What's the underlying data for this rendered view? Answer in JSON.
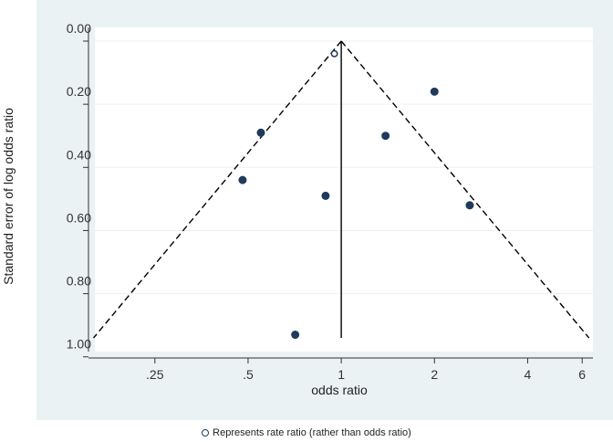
{
  "chart_data": {
    "type": "scatter",
    "title": "",
    "xlabel": "odds ratio",
    "ylabel": "Standard error of log odds ratio",
    "x_scale": "log",
    "y_reversed": true,
    "xlim": [
      0.16,
      6.5
    ],
    "ylim": [
      0,
      1.05
    ],
    "x_ticks": [
      {
        "value": 0.25,
        "label": ".25"
      },
      {
        "value": 0.5,
        "label": ".5"
      },
      {
        "value": 1,
        "label": "1"
      },
      {
        "value": 2,
        "label": "2"
      },
      {
        "value": 4,
        "label": "4"
      },
      {
        "value": 6,
        "label": "6"
      }
    ],
    "y_ticks": [
      {
        "value": 0.0,
        "label": "0.00"
      },
      {
        "value": 0.2,
        "label": "0.20"
      },
      {
        "value": 0.4,
        "label": "0.40"
      },
      {
        "value": 0.6,
        "label": "0.60"
      },
      {
        "value": 0.8,
        "label": "0.80"
      },
      {
        "value": 1.0,
        "label": "1.00"
      }
    ],
    "grid": true,
    "points": [
      {
        "x": 0.95,
        "y": 0.04,
        "marker": "hollow"
      },
      {
        "x": 2.0,
        "y": 0.16,
        "marker": "filled"
      },
      {
        "x": 0.55,
        "y": 0.29,
        "marker": "filled"
      },
      {
        "x": 1.39,
        "y": 0.3,
        "marker": "filled"
      },
      {
        "x": 0.48,
        "y": 0.44,
        "marker": "filled"
      },
      {
        "x": 0.89,
        "y": 0.49,
        "marker": "filled"
      },
      {
        "x": 2.6,
        "y": 0.52,
        "marker": "filled"
      },
      {
        "x": 0.71,
        "y": 0.93,
        "marker": "filled"
      }
    ],
    "funnel_center": 1,
    "funnel_max_se": 0.94,
    "legend_note": "Represents rate ratio (rather than odds ratio)",
    "colors": {
      "panel_background": "#eaf2f3",
      "plot_background": "#ffffff",
      "gridline": "#eaf2f3",
      "marker": "#1f3a5a",
      "line": "#000000"
    }
  }
}
